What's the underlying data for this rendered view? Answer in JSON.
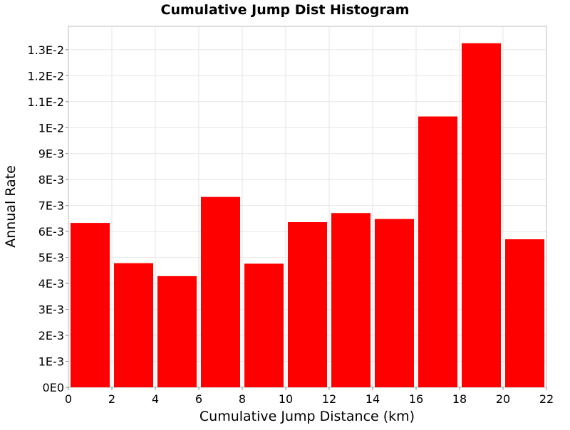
{
  "chart_data": {
    "type": "bar",
    "title": "Cumulative Jump Dist Histogram",
    "xlabel": "Cumulative Jump Distance (km)",
    "ylabel": "Annual Rate",
    "xlim": [
      0,
      22
    ],
    "ylim": [
      0,
      0.0139
    ],
    "grid": true,
    "bar_color": "#ff0000",
    "bins": [
      {
        "x0": 0,
        "x1": 2,
        "value": 0.00633
      },
      {
        "x0": 2,
        "x1": 4,
        "value": 0.00478
      },
      {
        "x0": 4,
        "x1": 6,
        "value": 0.00428
      },
      {
        "x0": 6,
        "x1": 8,
        "value": 0.00733
      },
      {
        "x0": 8,
        "x1": 10,
        "value": 0.00476
      },
      {
        "x0": 10,
        "x1": 12,
        "value": 0.00636
      },
      {
        "x0": 12,
        "x1": 14,
        "value": 0.00671
      },
      {
        "x0": 14,
        "x1": 16,
        "value": 0.00648
      },
      {
        "x0": 16,
        "x1": 18,
        "value": 0.01043
      },
      {
        "x0": 18,
        "x1": 20,
        "value": 0.01325
      },
      {
        "x0": 20,
        "x1": 22,
        "value": 0.0057
      }
    ],
    "x_ticks": [
      0,
      2,
      4,
      6,
      8,
      10,
      12,
      14,
      16,
      18,
      20,
      22
    ],
    "x_tick_labels": [
      "0",
      "2",
      "4",
      "6",
      "8",
      "10",
      "12",
      "14",
      "16",
      "18",
      "20",
      "22"
    ],
    "y_ticks": [
      0,
      0.001,
      0.002,
      0.003,
      0.004,
      0.005,
      0.006,
      0.007,
      0.008,
      0.009,
      0.01,
      0.011,
      0.012,
      0.013
    ],
    "y_tick_labels": [
      "0E0",
      "1E-3",
      "2E-3",
      "3E-3",
      "4E-3",
      "5E-3",
      "6E-3",
      "7E-3",
      "8E-3",
      "9E-3",
      "1E-2",
      "1.1E-2",
      "1.2E-2",
      "1.3E-2"
    ]
  }
}
